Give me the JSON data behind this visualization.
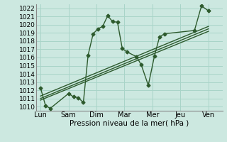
{
  "background_color": "#cce8e0",
  "grid_color": "#a8d4c8",
  "line_color": "#2d5a2d",
  "xlabel": "Pression niveau de la mer( hPa )",
  "ylim": [
    1009.5,
    1022.5
  ],
  "yticks": [
    1010,
    1011,
    1012,
    1013,
    1014,
    1015,
    1016,
    1017,
    1018,
    1019,
    1020,
    1021,
    1022
  ],
  "xtick_labels": [
    "Lun",
    "Sam",
    "Dim",
    "Mar",
    "Mer",
    "Jeu",
    "Ven"
  ],
  "xtick_positions": [
    0,
    1,
    2,
    3,
    4,
    5,
    6
  ],
  "xlim": [
    -0.15,
    6.5
  ],
  "main_x": [
    0.0,
    0.18,
    0.35,
    1.0,
    1.18,
    1.35,
    1.53,
    1.7,
    1.88,
    2.05,
    2.22,
    2.4,
    2.57,
    2.75,
    2.92,
    3.08,
    3.43,
    3.6,
    3.85,
    4.07,
    4.25,
    4.43,
    5.5,
    5.75,
    6.0
  ],
  "main_y": [
    1012.3,
    1010.1,
    1009.8,
    1011.6,
    1011.2,
    1011.1,
    1010.5,
    1016.3,
    1018.9,
    1019.5,
    1019.8,
    1021.1,
    1020.4,
    1020.3,
    1017.1,
    1016.7,
    1016.1,
    1015.1,
    1012.6,
    1016.2,
    1018.5,
    1018.9,
    1019.3,
    1022.3,
    1021.7
  ],
  "trend1_x": [
    0.0,
    6.0
  ],
  "trend1_y": [
    1011.0,
    1019.5
  ],
  "trend2_x": [
    0.0,
    6.0
  ],
  "trend2_y": [
    1011.3,
    1019.8
  ],
  "trend3_x": [
    0.0,
    6.0
  ],
  "trend3_y": [
    1010.8,
    1019.2
  ],
  "marker": "D",
  "marker_size": 2.5,
  "linewidth": 1.0
}
